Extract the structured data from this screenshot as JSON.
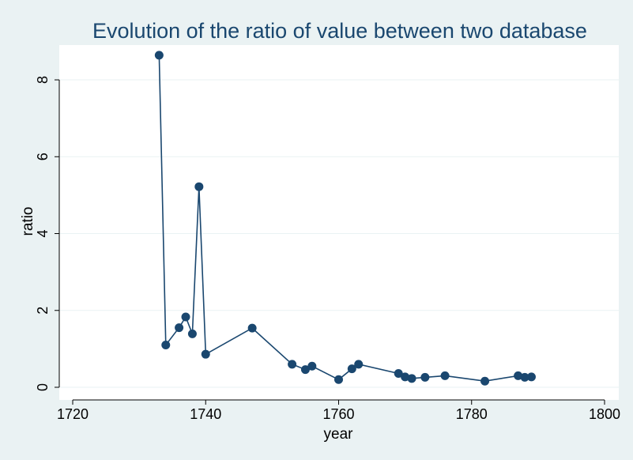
{
  "chart_data": {
    "type": "line",
    "title": "Evolution of the ratio of value between two database",
    "xlabel": "year",
    "ylabel": "ratio",
    "xlim": [
      1720,
      1800
    ],
    "ylim": [
      0,
      8.7
    ],
    "xticks": [
      1720,
      1740,
      1760,
      1780,
      1800
    ],
    "yticks": [
      0,
      2,
      4,
      6,
      8
    ],
    "grid": true,
    "legend": "none",
    "colors": {
      "series": "#1a476f",
      "background": "#eaf2f3",
      "plot_area": "#ffffff"
    },
    "series": [
      {
        "x": [
          1733,
          1734,
          1736,
          1737,
          1738,
          1739,
          1740,
          1747,
          1753,
          1755,
          1756,
          1760,
          1762,
          1763,
          1769,
          1770,
          1771,
          1773,
          1776,
          1782,
          1787,
          1788,
          1789
        ],
        "y": [
          8.64,
          1.1,
          1.55,
          1.83,
          1.39,
          5.22,
          0.86,
          1.54,
          0.6,
          0.46,
          0.55,
          0.2,
          0.48,
          0.6,
          0.36,
          0.27,
          0.23,
          0.26,
          0.3,
          0.16,
          0.3,
          0.26,
          0.27
        ]
      }
    ]
  }
}
